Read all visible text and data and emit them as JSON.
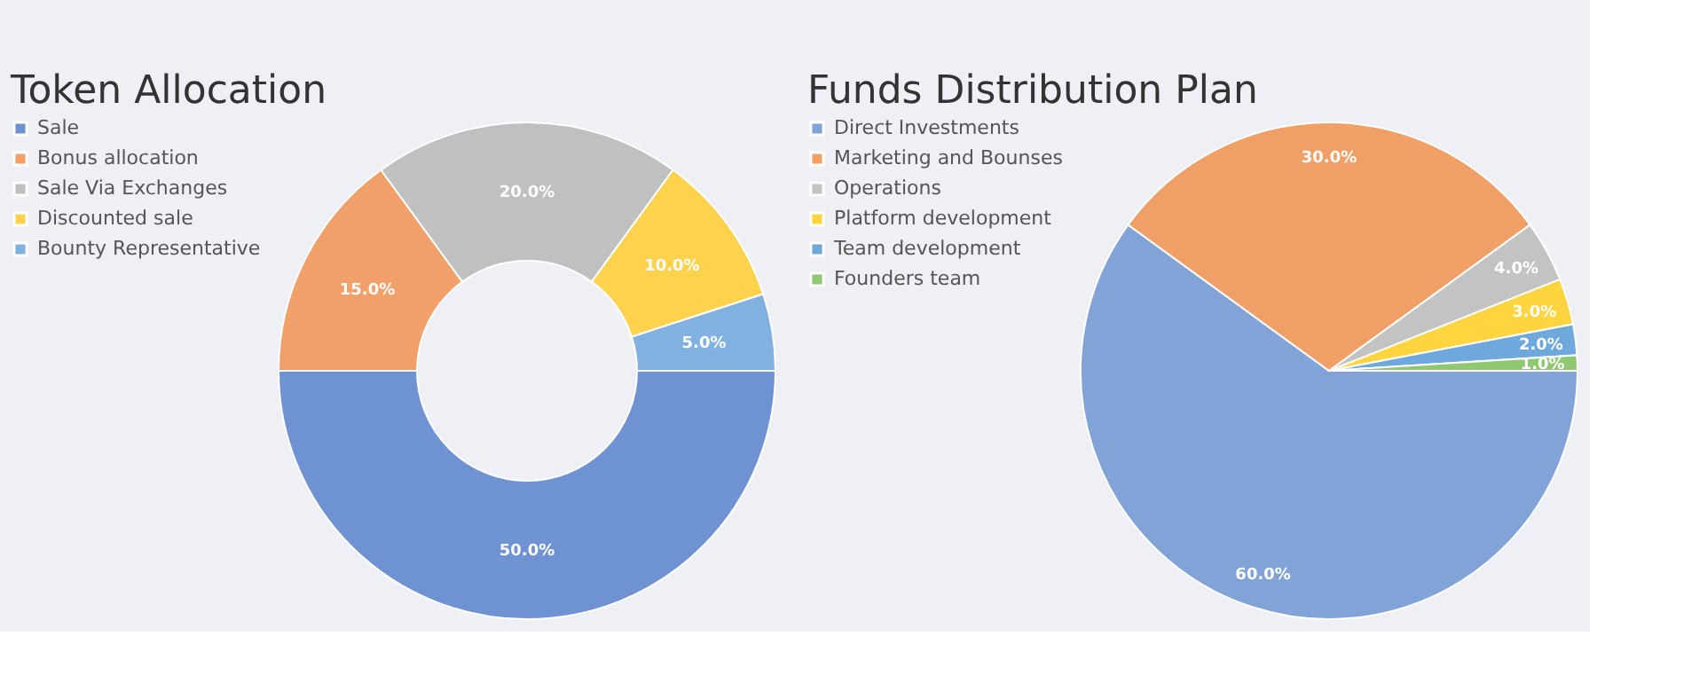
{
  "chart_data": [
    {
      "type": "donut",
      "title": "Token Allocation",
      "legend": "left",
      "categories": [
        "Sale",
        "Bonus allocation",
        "Sale Via Exchanges",
        "Discounted sale",
        "Bounty Representative"
      ],
      "values": [
        50,
        15,
        20,
        10,
        5
      ],
      "value_labels": [
        "50.0%",
        "15.0%",
        "20.0%",
        "10.0%",
        "5.0%"
      ],
      "colors": [
        "#6f93d2",
        "#f2a06a",
        "#c0c0c0",
        "#ffd24d",
        "#80b1e0"
      ]
    },
    {
      "type": "pie",
      "title": "Funds Distribution Plan",
      "legend": "left",
      "categories": [
        "Direct Investments",
        "Marketing and Bounses",
        "Operations",
        "Platform development",
        "Team development",
        "Founders team"
      ],
      "values": [
        60,
        30,
        4,
        3,
        2,
        1
      ],
      "value_labels": [
        "60.0%",
        "30.0%",
        "4.0%",
        "3.0%",
        "2.0%",
        "1.0%"
      ],
      "colors": [
        "#82a3d8",
        "#f0a066",
        "#c3c3c3",
        "#ffd43f",
        "#6fa8dc",
        "#8fc870"
      ]
    }
  ]
}
